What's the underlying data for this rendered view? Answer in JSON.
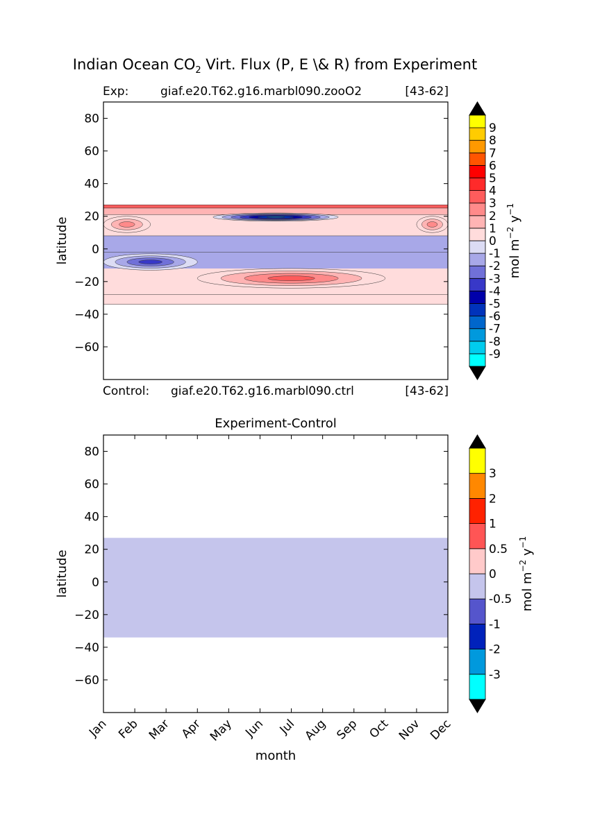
{
  "figure": {
    "title_pre": "Indian Ocean CO",
    "title_sub": "2",
    "title_post": " Virt. Flux (P, E \\& R) from Experiment"
  },
  "chart_data": [
    {
      "type": "heatmap",
      "label_exp": "Exp:",
      "exp_case": "giaf.e20.T62.g16.marbl090.zooO2",
      "exp_years": "[43-62]",
      "label_control": "Control:",
      "control_case": "giaf.e20.T62.g16.marbl090.ctrl",
      "control_years": "[43-62]",
      "xlabel": "",
      "ylabel": "latitude",
      "xlim": [
        0,
        11
      ],
      "ylim": [
        -80,
        90
      ],
      "yticks": [
        80,
        60,
        40,
        20,
        0,
        -20,
        -40,
        -60
      ],
      "ytick_labels": [
        "80",
        "60",
        "40",
        "20",
        "0",
        "−20",
        "−40",
        "−60"
      ],
      "data_lat_range": [
        -34,
        27
      ],
      "colorbar": {
        "label_pre": "mol m",
        "label_exp1": "−2",
        "label_mid": "  y",
        "label_exp2": "−1",
        "levels": [
          "-9",
          "-8",
          "-7",
          "-6",
          "-5",
          "-4",
          "-3",
          "-2",
          "-1",
          "0",
          "1",
          "2",
          "3",
          "4",
          "5",
          "6",
          "7",
          "8",
          "9"
        ],
        "colors": [
          "#00ffff",
          "#00ccee",
          "#0099dd",
          "#0066cc",
          "#0033bb",
          "#0000aa",
          "#3838c8",
          "#7070d8",
          "#a8a8e8",
          "#dcdcf4",
          "#ffdcdc",
          "#ffb4b4",
          "#ff8a8a",
          "#ff5c5c",
          "#ff2a2a",
          "#ff0000",
          "#ff5500",
          "#ff9900",
          "#ffcc00",
          "#ffff00"
        ],
        "extend_colors": {
          "min": "#000000",
          "max": "#000000"
        }
      },
      "contour_field": {
        "description_values": [
          {
            "month_range": [
              0,
              11
            ],
            "lat_range": [
              25,
              27
            ],
            "value": 3.5
          },
          {
            "month_range": [
              0,
              11
            ],
            "lat_range": [
              21,
              25
            ],
            "value": 1.5
          },
          {
            "month_range": [
              3.5,
              7.5
            ],
            "lat_range": [
              17,
              22
            ],
            "value": -6
          },
          {
            "month_range": [
              0,
              1.5
            ],
            "lat_range": [
              10,
              20
            ],
            "value": 2
          },
          {
            "month_range": [
              10,
              11
            ],
            "lat_range": [
              10,
              20
            ],
            "value": 2
          },
          {
            "month_range": [
              0,
              11
            ],
            "lat_range": [
              -2,
              8
            ],
            "value": -1
          },
          {
            "month_range": [
              0,
              3
            ],
            "lat_range": [
              -13,
              -3
            ],
            "value": -3
          },
          {
            "month_range": [
              3,
              9
            ],
            "lat_range": [
              -24,
              -12
            ],
            "value": 3
          },
          {
            "month_range": [
              0,
              11
            ],
            "lat_range": [
              -34,
              -28
            ],
            "value": 1
          }
        ]
      }
    },
    {
      "type": "heatmap",
      "title": "Experiment-Control",
      "xlabel": "month",
      "ylabel": "latitude",
      "xlim": [
        0,
        11
      ],
      "ylim": [
        -80,
        90
      ],
      "xticks": [
        "Jan",
        "Feb",
        "Mar",
        "Apr",
        "May",
        "Jun",
        "Jul",
        "Aug",
        "Sep",
        "Oct",
        "Nov",
        "Dec"
      ],
      "yticks": [
        80,
        60,
        40,
        20,
        0,
        -20,
        -40,
        -60
      ],
      "ytick_labels": [
        "80",
        "60",
        "40",
        "20",
        "0",
        "−20",
        "−40",
        "−60"
      ],
      "fill": {
        "lat_range": [
          -34,
          27
        ],
        "value": -0.25,
        "color": "#c5c5ec"
      },
      "colorbar": {
        "label_pre": "mol m",
        "label_exp1": "−2",
        "label_mid": "  y",
        "label_exp2": "−1",
        "levels": [
          "-3",
          "-2",
          "-1",
          "-0.5",
          "0",
          "0.5",
          "1",
          "2",
          "3"
        ],
        "colors": [
          "#00ffff",
          "#0099dd",
          "#0022bb",
          "#5555cc",
          "#c5c5ec",
          "#ffcaca",
          "#ff5555",
          "#ff2200",
          "#ff8800",
          "#ffff00"
        ],
        "extend_colors": {
          "min": "#000000",
          "max": "#000000"
        }
      }
    }
  ]
}
